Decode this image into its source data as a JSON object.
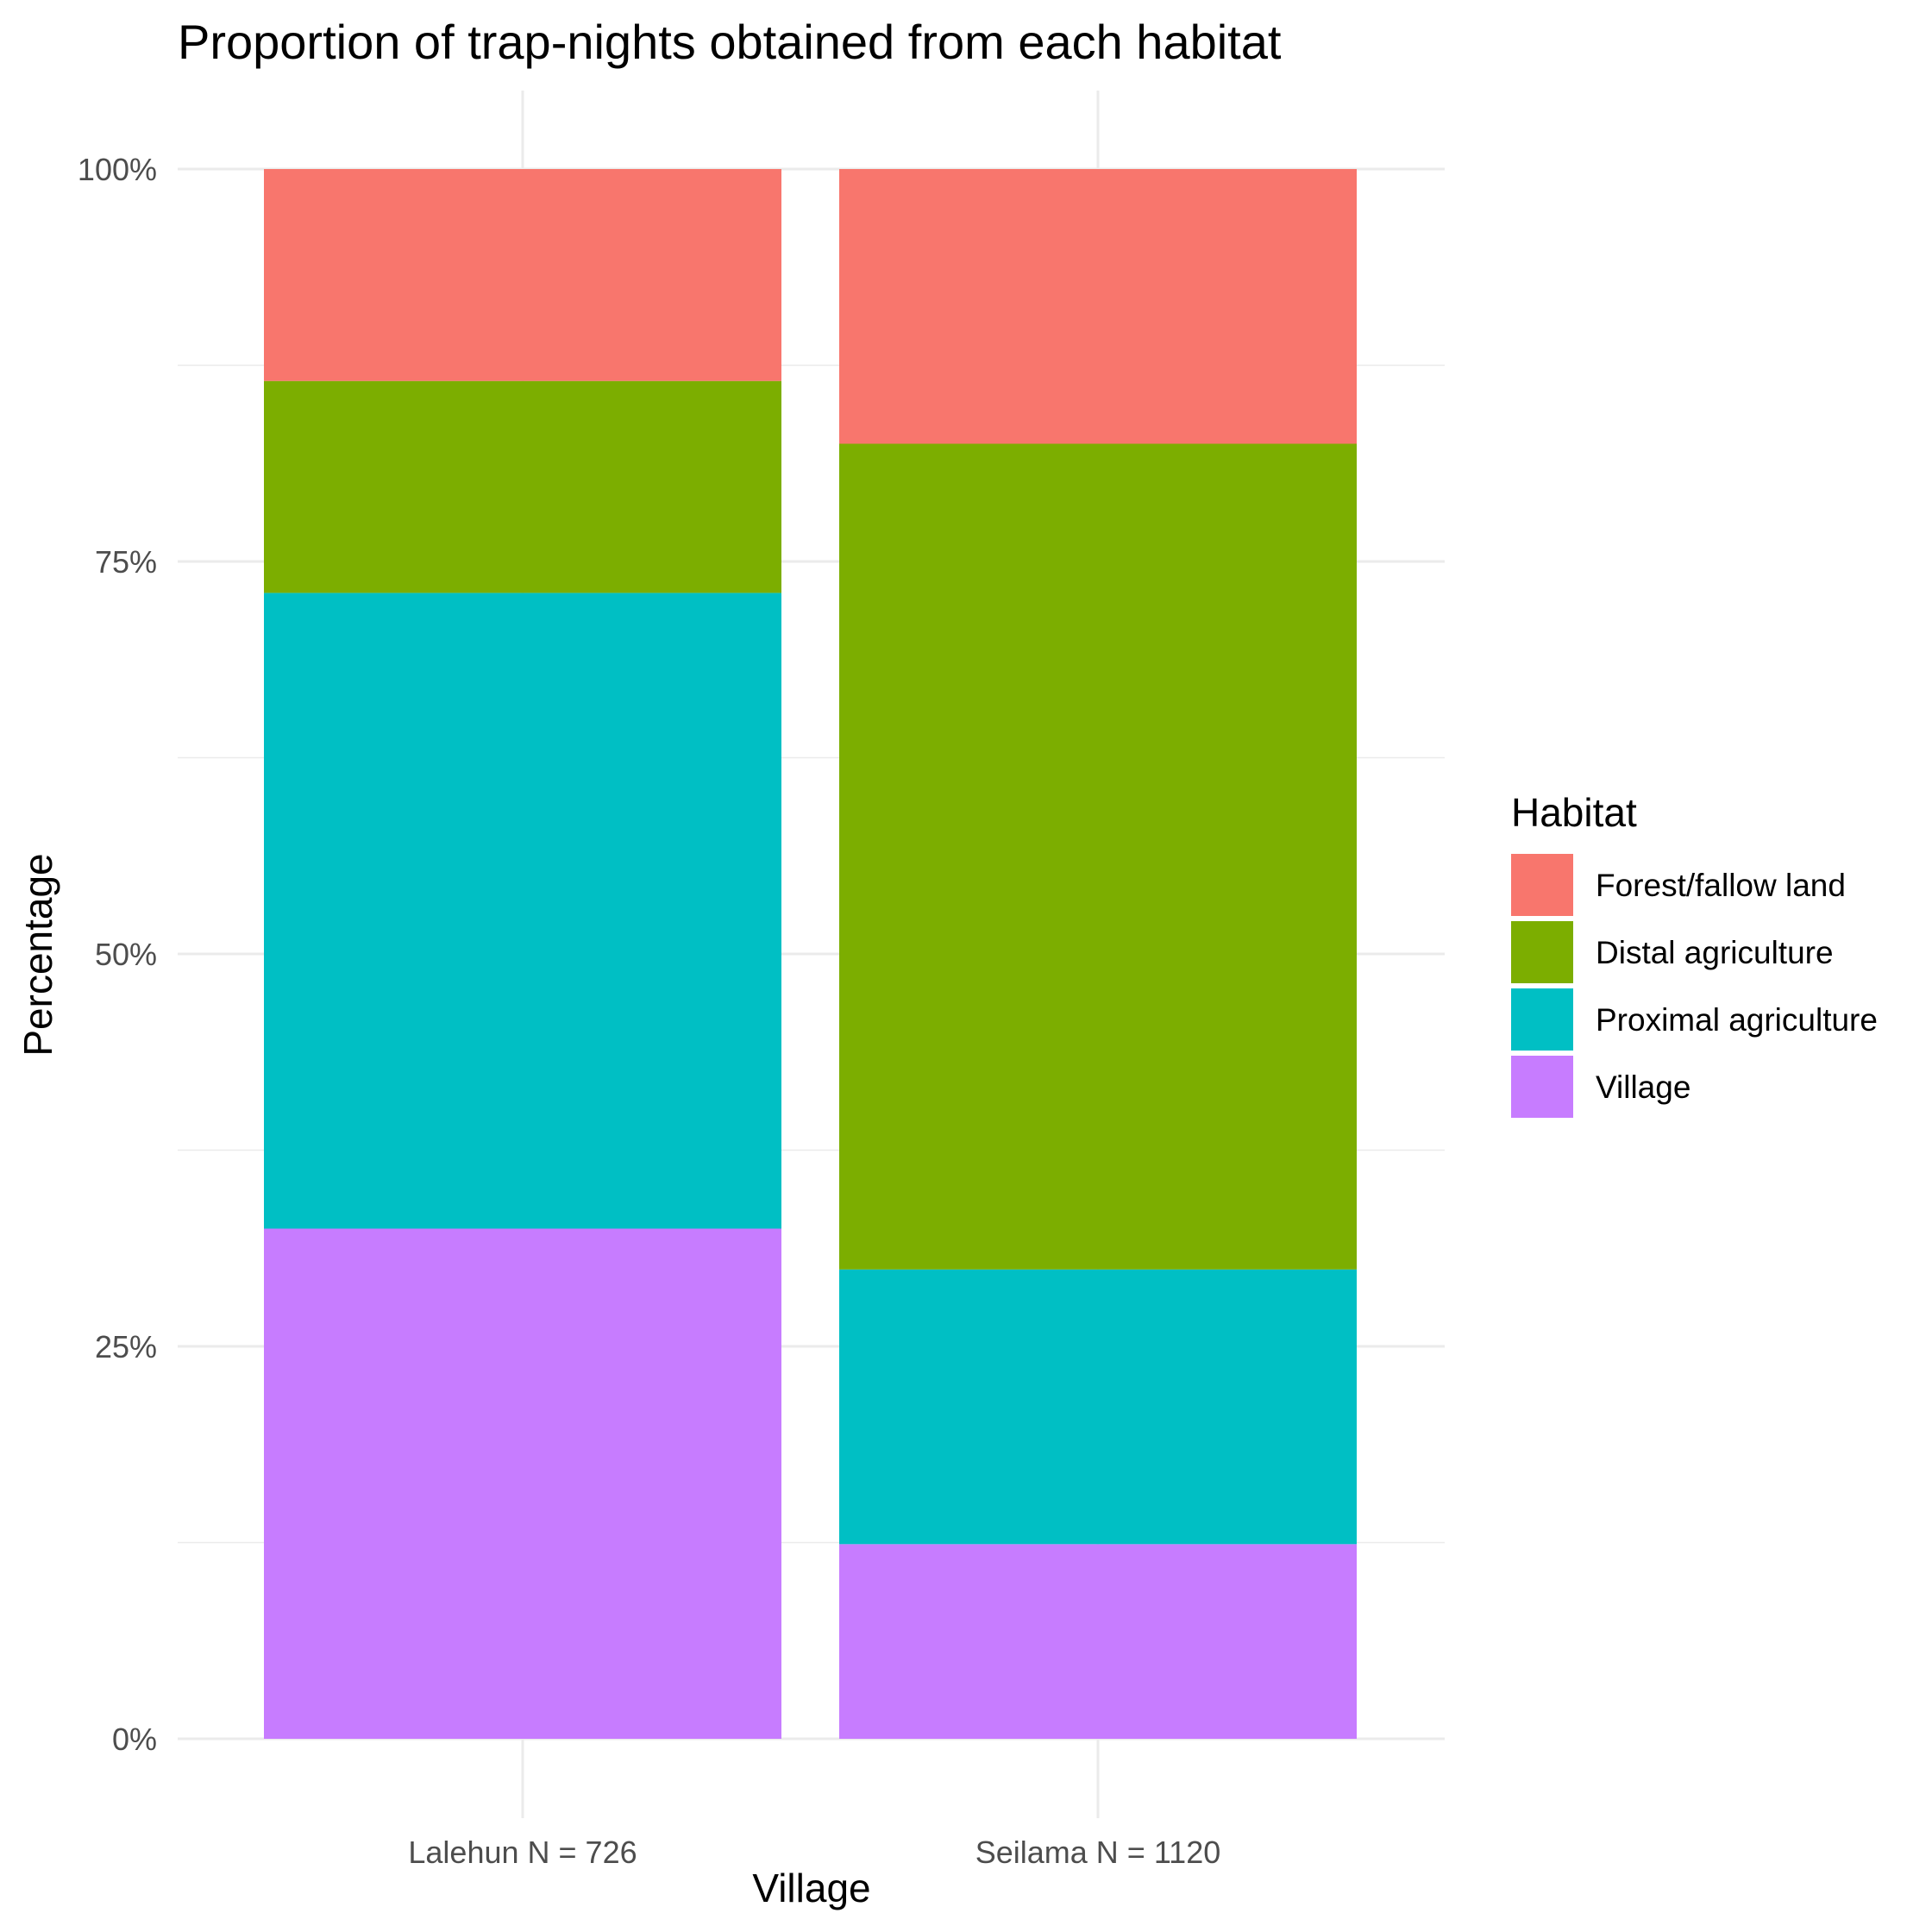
{
  "chart_data": {
    "type": "bar",
    "stacked": true,
    "title": "Proportion of trap-nights obtained from each habitat",
    "xlabel": "Village",
    "ylabel": "Percentage",
    "categories": [
      "Lalehun N = 726",
      "Seilama N = 1120"
    ],
    "y_ticks": [
      "0%",
      "25%",
      "50%",
      "75%",
      "100%"
    ],
    "ylim": [
      0,
      100
    ],
    "grid": true,
    "legend": {
      "title": "Habitat",
      "position": "right"
    },
    "series": [
      {
        "name": "Forest/fallow land",
        "color": "#F8766D",
        "values": [
          13.5,
          17.5
        ]
      },
      {
        "name": "Distal agriculture",
        "color": "#7CAE00",
        "values": [
          13.5,
          52.6
        ]
      },
      {
        "name": "Proximal agriculture",
        "color": "#00BFC4",
        "values": [
          40.5,
          17.5
        ]
      },
      {
        "name": "Village",
        "color": "#C77CFF",
        "values": [
          32.5,
          12.4
        ]
      }
    ]
  }
}
